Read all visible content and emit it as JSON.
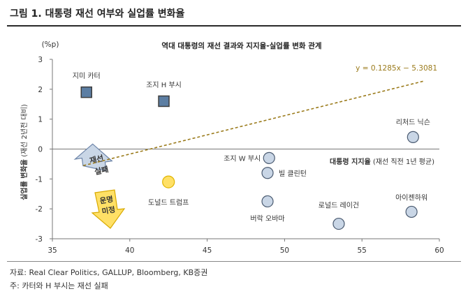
{
  "figure_title": "그림 1. 대통령 재선 여부와 실업률 변화율",
  "source_note": "자료: Real Clear Politics, GALLUP, Bloomberg, KB증권",
  "footnote": "주: 카터와 H 부시는 재선 실패",
  "colors": {
    "reelection_fail_fill": "#5c7ea3",
    "reelection_fail_stroke": "#3d3d3d",
    "point_fill": "#c9d6e6",
    "point_stroke": "#4a5a70",
    "undecided_fill": "#ffe066",
    "undecided_stroke": "#e0b400",
    "trend": "#9a7a1a",
    "fail_arrow_fill": "#c9d6e6",
    "fail_arrow_stroke": "#6c84a8",
    "undecided_arrow_fill": "#ffe066",
    "undecided_arrow_stroke": "#d8a900"
  },
  "chart_data": {
    "type": "scatter",
    "title": "역대 대통령의 재선 결과와 지지율-실업률 변화 관계",
    "y_unit": "(%p)",
    "xlabel_bold": "대통령 지지율",
    "xlabel_rest": " (재선 직전 1년 평균)",
    "ylabel_bold": "실업률 변화율",
    "ylabel_rest": " (재선 2년전 대비)",
    "xlim": [
      35,
      60
    ],
    "ylim": [
      -3,
      3
    ],
    "xticks": [
      "35",
      "40",
      "45",
      "50",
      "55",
      "60"
    ],
    "yticks": [
      "3",
      "2",
      "1",
      "0",
      "-1",
      "-2",
      "-3"
    ],
    "grid": false,
    "trendline": {
      "label": "y = 0.1285x − 5.3081",
      "slope": 0.1285,
      "intercept": -5.3081,
      "x_range": [
        37,
        59
      ]
    },
    "points": [
      {
        "name": "지미 카터",
        "x": 37.2,
        "y": 1.9,
        "group": "fail"
      },
      {
        "name": "조지 H 부시",
        "x": 42.2,
        "y": 1.6,
        "group": "fail"
      },
      {
        "name": "리처드 닉슨",
        "x": 58.3,
        "y": 0.4,
        "group": "reelected"
      },
      {
        "name": "조지 W 부시",
        "x": 49.0,
        "y": -0.3,
        "group": "reelected"
      },
      {
        "name": "빌 클린턴",
        "x": 48.9,
        "y": -0.8,
        "group": "reelected"
      },
      {
        "name": "도널드 트럼프",
        "x": 42.5,
        "y": -1.1,
        "group": "undecided"
      },
      {
        "name": "버락 오바마",
        "x": 48.9,
        "y": -1.75,
        "group": "reelected"
      },
      {
        "name": "로널드 레이건",
        "x": 53.5,
        "y": -2.5,
        "group": "reelected"
      },
      {
        "name": "아이젠하워",
        "x": 58.2,
        "y": -2.1,
        "group": "reelected"
      }
    ],
    "annotations": {
      "fail_arrow_text": [
        "재선",
        "실패"
      ],
      "undecided_arrow_text": [
        "운명",
        "미정"
      ]
    }
  }
}
